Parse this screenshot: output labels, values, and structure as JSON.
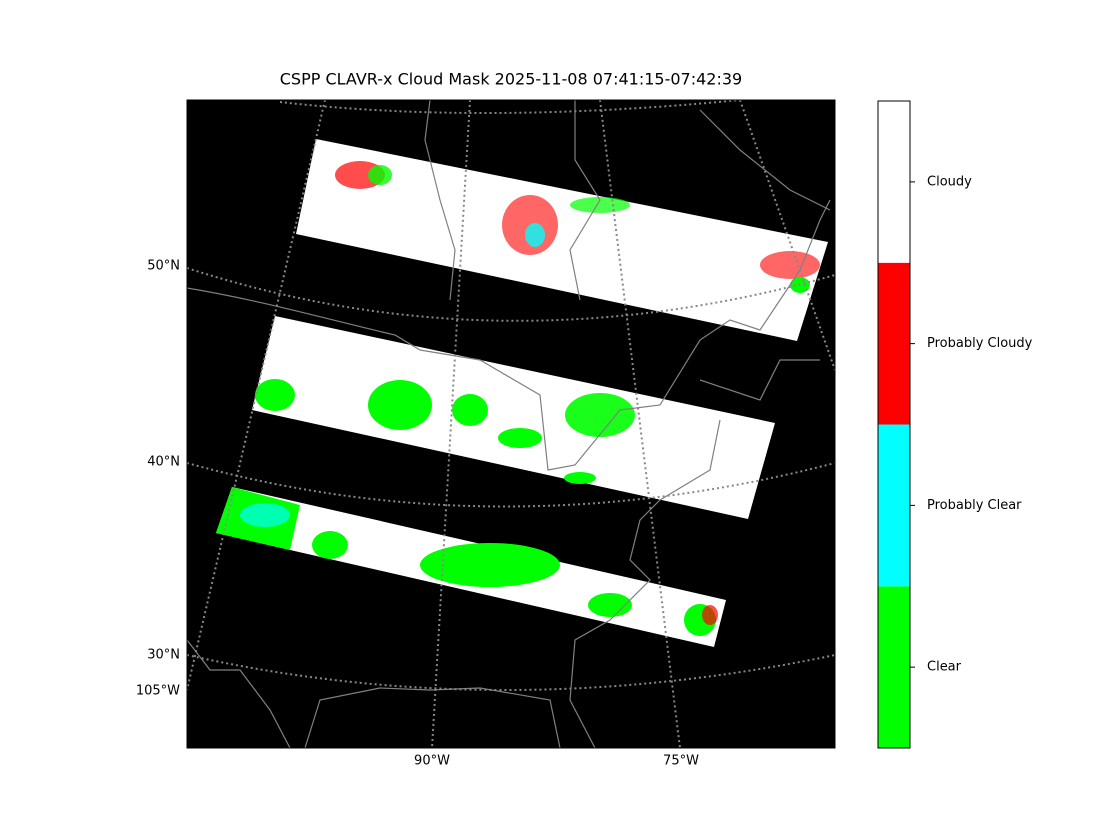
{
  "title": "CSPP CLAVR-x Cloud Mask 2025-11-08 07:41:15-07:42:39",
  "map": {
    "lat_labels": [
      "50°N",
      "40°N",
      "30°N"
    ],
    "lon_labels": [
      "105°W",
      "90°W",
      "75°W"
    ]
  },
  "colorbar": {
    "classes": [
      {
        "name": "Clear",
        "color": "#00ff00"
      },
      {
        "name": "Probably Clear",
        "color": "#00ffff"
      },
      {
        "name": "Probably Cloudy",
        "color": "#ff0000"
      },
      {
        "name": "Cloudy",
        "color": "#ffffff"
      }
    ]
  }
}
